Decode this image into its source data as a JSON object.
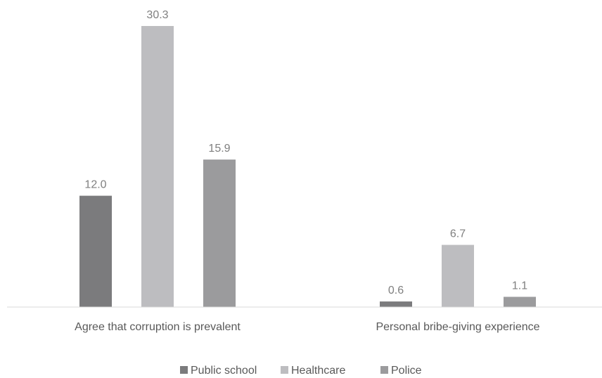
{
  "chart_data": {
    "type": "bar",
    "title": "",
    "xlabel": "",
    "ylabel": "",
    "categories": [
      "Agree that corruption is prevalent",
      "Personal bribe-giving experience"
    ],
    "series": [
      {
        "name": "Public school",
        "values": [
          12.0,
          0.6
        ],
        "color": "#7b7b7d"
      },
      {
        "name": "Healthcare",
        "values": [
          30.3,
          6.7
        ],
        "color": "#bdbdc0"
      },
      {
        "name": "Police",
        "values": [
          15.9,
          1.1
        ],
        "color": "#9b9b9d"
      }
    ],
    "ylim": [
      0,
      30.3
    ],
    "grid": false,
    "legend_position": "bottom",
    "value_labels": true
  }
}
